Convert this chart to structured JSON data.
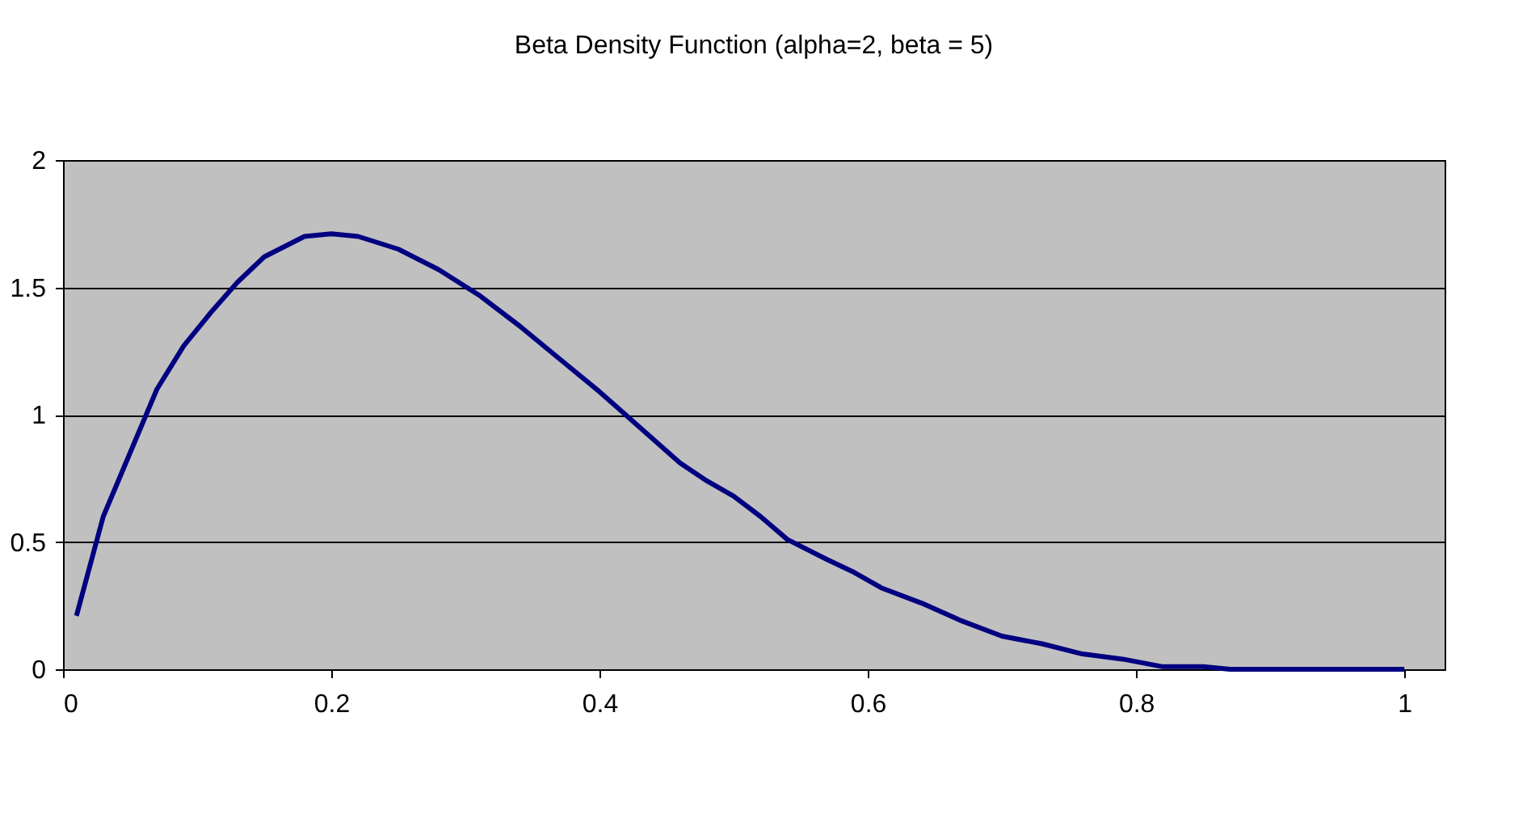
{
  "chart_data": {
    "type": "line",
    "title": "Beta Density Function (alpha=2, beta = 5)",
    "x": [
      0.01,
      0.03,
      0.05,
      0.07,
      0.09,
      0.11,
      0.13,
      0.15,
      0.18,
      0.2,
      0.22,
      0.25,
      0.28,
      0.31,
      0.34,
      0.37,
      0.4,
      0.43,
      0.46,
      0.48,
      0.5,
      0.52,
      0.54,
      0.57,
      0.59,
      0.61,
      0.64,
      0.67,
      0.7,
      0.73,
      0.76,
      0.79,
      0.82,
      0.85,
      0.87,
      0.9,
      0.95,
      1.0
    ],
    "series": [
      {
        "color": "#000080",
        "values": [
          0.21,
          0.6,
          0.85,
          1.1,
          1.27,
          1.4,
          1.52,
          1.62,
          1.7,
          1.71,
          1.7,
          1.65,
          1.57,
          1.47,
          1.35,
          1.22,
          1.09,
          0.95,
          0.81,
          0.74,
          0.68,
          0.6,
          0.51,
          0.43,
          0.38,
          0.32,
          0.26,
          0.19,
          0.13,
          0.1,
          0.06,
          0.04,
          0.01,
          0.01,
          0,
          0,
          0,
          0
        ]
      }
    ],
    "xlim": [
      0,
      1.03
    ],
    "xticks": [
      0,
      0.2,
      0.4,
      0.6,
      0.8,
      1
    ],
    "ylim": [
      0,
      2
    ],
    "yticks": [
      0,
      0.5,
      1,
      1.5,
      2
    ],
    "grid": "y",
    "marker": "none",
    "line_style": "solid"
  }
}
